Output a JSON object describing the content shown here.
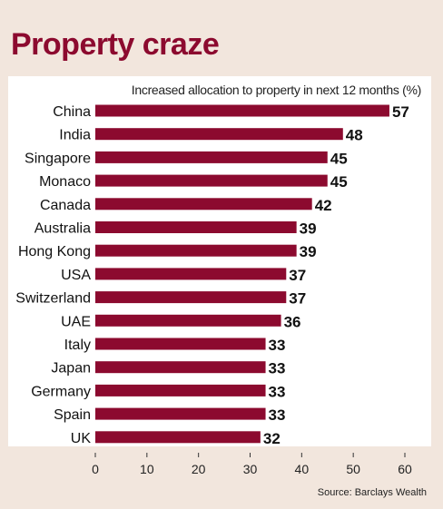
{
  "title": "Property craze",
  "source": "Source: Barclays Wealth",
  "chart_data": {
    "type": "bar",
    "orientation": "horizontal",
    "title": "Property craze",
    "subtitle": "Increased allocation to property in next 12 months (%)",
    "categories": [
      "China",
      "India",
      "Singapore",
      "Monaco",
      "Canada",
      "Australia",
      "Hong Kong",
      "USA",
      "Switzerland",
      "UAE",
      "Italy",
      "Japan",
      "Germany",
      "Spain",
      "UK"
    ],
    "values": [
      57,
      48,
      45,
      45,
      42,
      39,
      39,
      37,
      37,
      36,
      33,
      33,
      33,
      33,
      32
    ],
    "xlim": [
      0,
      60
    ],
    "xticks": [
      0,
      10,
      20,
      30,
      40,
      50,
      60
    ],
    "grid": false,
    "bar_color": "#8c0a2f"
  }
}
